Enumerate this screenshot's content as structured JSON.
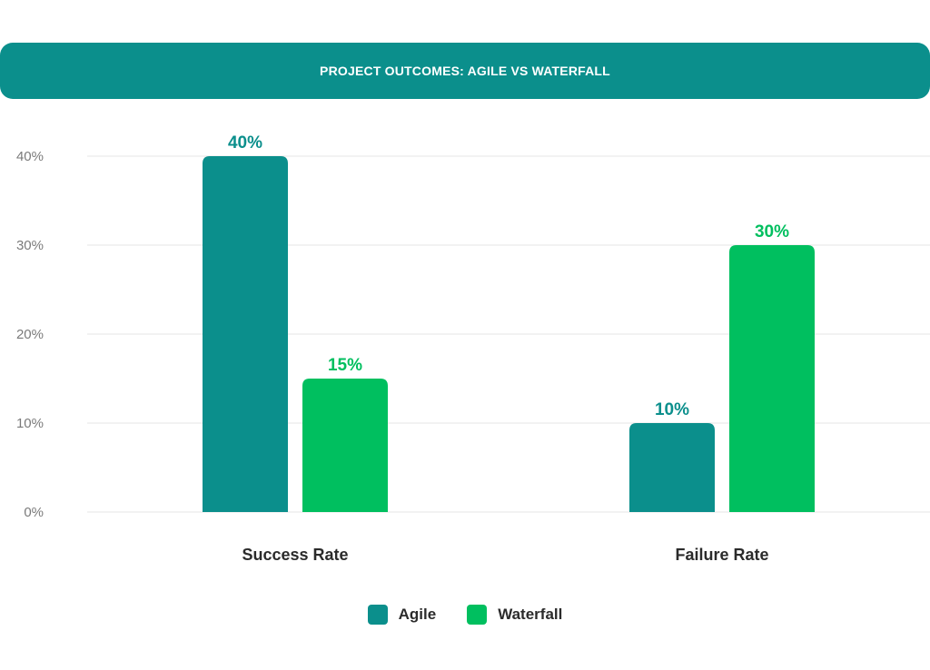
{
  "chart_data": {
    "type": "bar",
    "title": "PROJECT OUTCOMES: AGILE VS WATERFALL",
    "categories": [
      "Success Rate",
      "Failure Rate"
    ],
    "series": [
      {
        "name": "Agile",
        "values": [
          40,
          10
        ],
        "labels": [
          "40%",
          "10%"
        ],
        "color": "#0b8f8c"
      },
      {
        "name": "Waterfall",
        "values": [
          15,
          30
        ],
        "labels": [
          "15%",
          "30%"
        ],
        "color": "#00bf5f"
      }
    ],
    "y_ticks": [
      0,
      10,
      20,
      30,
      40
    ],
    "y_tick_labels": [
      "0%",
      "10%",
      "20%",
      "30%",
      "40%"
    ],
    "ylim": [
      0,
      40
    ],
    "xlabel": "",
    "ylabel": "",
    "grid": true,
    "legend_position": "bottom-center"
  },
  "colors": {
    "banner": "#0b8f8c",
    "gridline": "#e6e6e6",
    "axis_text": "#7a7a7a",
    "category_text": "#2b2b2b"
  }
}
